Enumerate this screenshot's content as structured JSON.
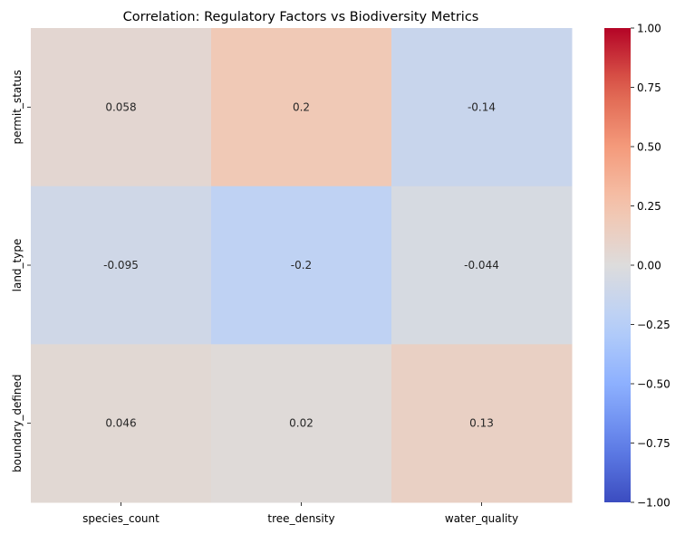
{
  "chart_data": {
    "type": "heatmap",
    "title": "Correlation: Regulatory Factors vs Biodiversity Metrics",
    "xlabel": "",
    "ylabel": "",
    "x_categories": [
      "species_count",
      "tree_density",
      "water_quality"
    ],
    "y_categories": [
      "permit_status",
      "land_type",
      "boundary_defined"
    ],
    "values": [
      [
        0.058,
        0.2,
        -0.14
      ],
      [
        -0.095,
        -0.2,
        -0.044
      ],
      [
        0.046,
        0.02,
        0.13
      ]
    ],
    "value_labels": [
      [
        "0.058",
        "0.2",
        "-0.14"
      ],
      [
        "-0.095",
        "-0.2",
        "-0.044"
      ],
      [
        "0.046",
        "0.02",
        "0.13"
      ]
    ],
    "colormap": "coolwarm",
    "vmin": -1.0,
    "vmax": 1.0,
    "colorbar_ticks": [
      -1.0,
      -0.75,
      -0.5,
      -0.25,
      0.0,
      0.25,
      0.5,
      0.75,
      1.0
    ],
    "colorbar_tick_labels": [
      "−1.00",
      "−0.75",
      "−0.50",
      "−0.25",
      "0.00",
      "0.25",
      "0.50",
      "0.75",
      "1.00"
    ],
    "grid": false,
    "legend": "colorbar-right"
  }
}
